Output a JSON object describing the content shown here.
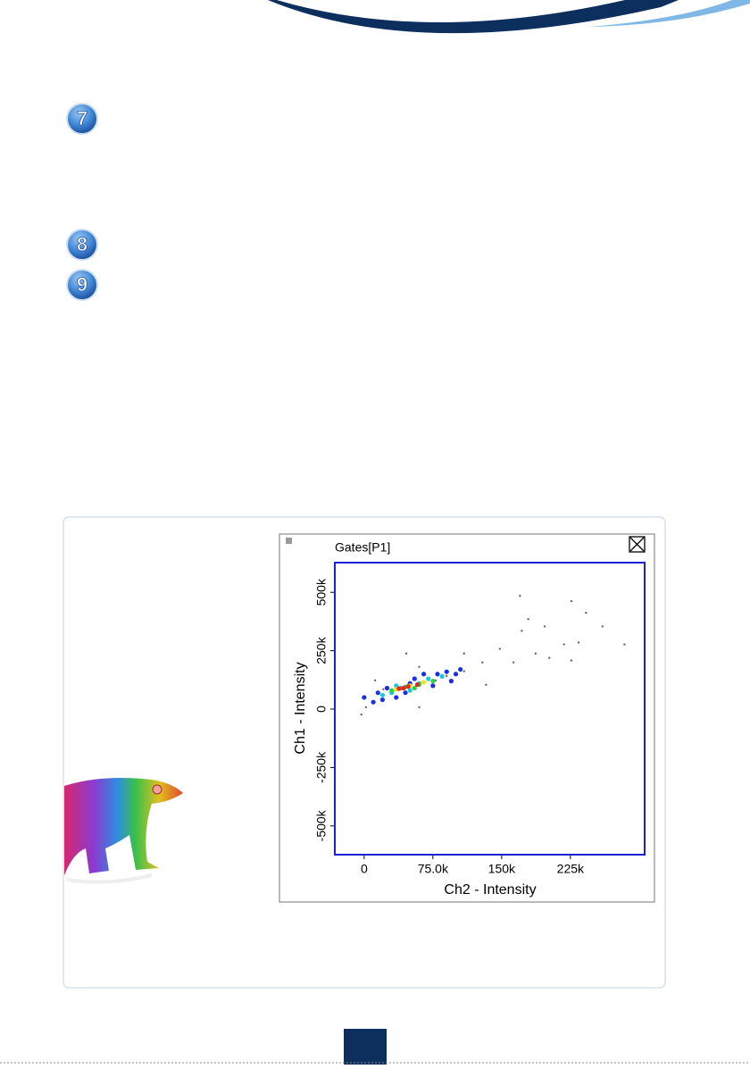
{
  "steps": [
    "7",
    "8",
    "9"
  ],
  "chart_data": {
    "type": "scatter",
    "title": "Gates[P1]",
    "x_label": "Ch2 - Intensity",
    "y_label": "Ch1 - Intensity",
    "xlim": [
      -32000,
      306000
    ],
    "ylim": [
      -623000,
      627000
    ],
    "xticks": [
      0,
      {
        "value": 75000,
        "label": "75.0k"
      },
      {
        "value": 150000,
        "label": "150k"
      },
      {
        "value": 225000,
        "label": "225k"
      }
    ],
    "yticks": [
      {
        "value": -500000,
        "label": "-500k"
      },
      {
        "value": -250000,
        "label": "-250k"
      },
      0,
      {
        "value": 250000,
        "label": "250k"
      },
      {
        "value": 500000,
        "label": "500k"
      }
    ],
    "frame_color": "#1f1fd6",
    "series": [
      {
        "color": "#666666",
        "x": [
          170000,
          179000,
          226000,
          242000,
          197000,
          234000,
          187000,
          163000,
          129000,
          109000,
          90000,
          60000,
          46000,
          21000,
          -3000,
          2000,
          284000,
          218000,
          202000,
          148000,
          172000,
          260000,
          133000,
          78000,
          12000,
          226000,
          109000,
          60000
        ],
        "values": [
          485000,
          385000,
          462000,
          412000,
          354000,
          285000,
          238000,
          200000,
          200000,
          162000,
          142000,
          181000,
          238000,
          85000,
          -23000,
          8000,
          277000,
          277000,
          219000,
          258000,
          335000,
          354000,
          104000,
          123000,
          123000,
          208000,
          238000,
          8000
        ]
      },
      {
        "color": "#1a2ee8",
        "x": [
          0,
          10000,
          20000,
          25000,
          35000,
          45000,
          55000,
          65000,
          80000,
          90000,
          100000,
          95000,
          75000,
          105000,
          15000,
          50000
        ],
        "values": [
          50000,
          30000,
          40000,
          90000,
          50000,
          70000,
          130000,
          150000,
          150000,
          160000,
          150000,
          120000,
          100000,
          170000,
          70000,
          110000
        ]
      },
      {
        "color": "#19c8e6",
        "x": [
          20000,
          30000,
          40000,
          60000,
          70000,
          85000,
          50000,
          35000
        ],
        "values": [
          60000,
          70000,
          90000,
          110000,
          130000,
          140000,
          80000,
          100000
        ]
      },
      {
        "color": "#2ed14a",
        "x": [
          30000,
          45000,
          60000,
          75000,
          55000
        ],
        "values": [
          80000,
          95000,
          105000,
          120000,
          90000
        ]
      },
      {
        "color": "#f2e21b",
        "x": [
          35000,
          50000,
          65000
        ],
        "values": [
          85000,
          100000,
          115000
        ]
      },
      {
        "color": "#e8261b",
        "x": [
          38000,
          48000,
          58000,
          43000
        ],
        "values": [
          88000,
          97000,
          105000,
          90000
        ]
      }
    ]
  }
}
